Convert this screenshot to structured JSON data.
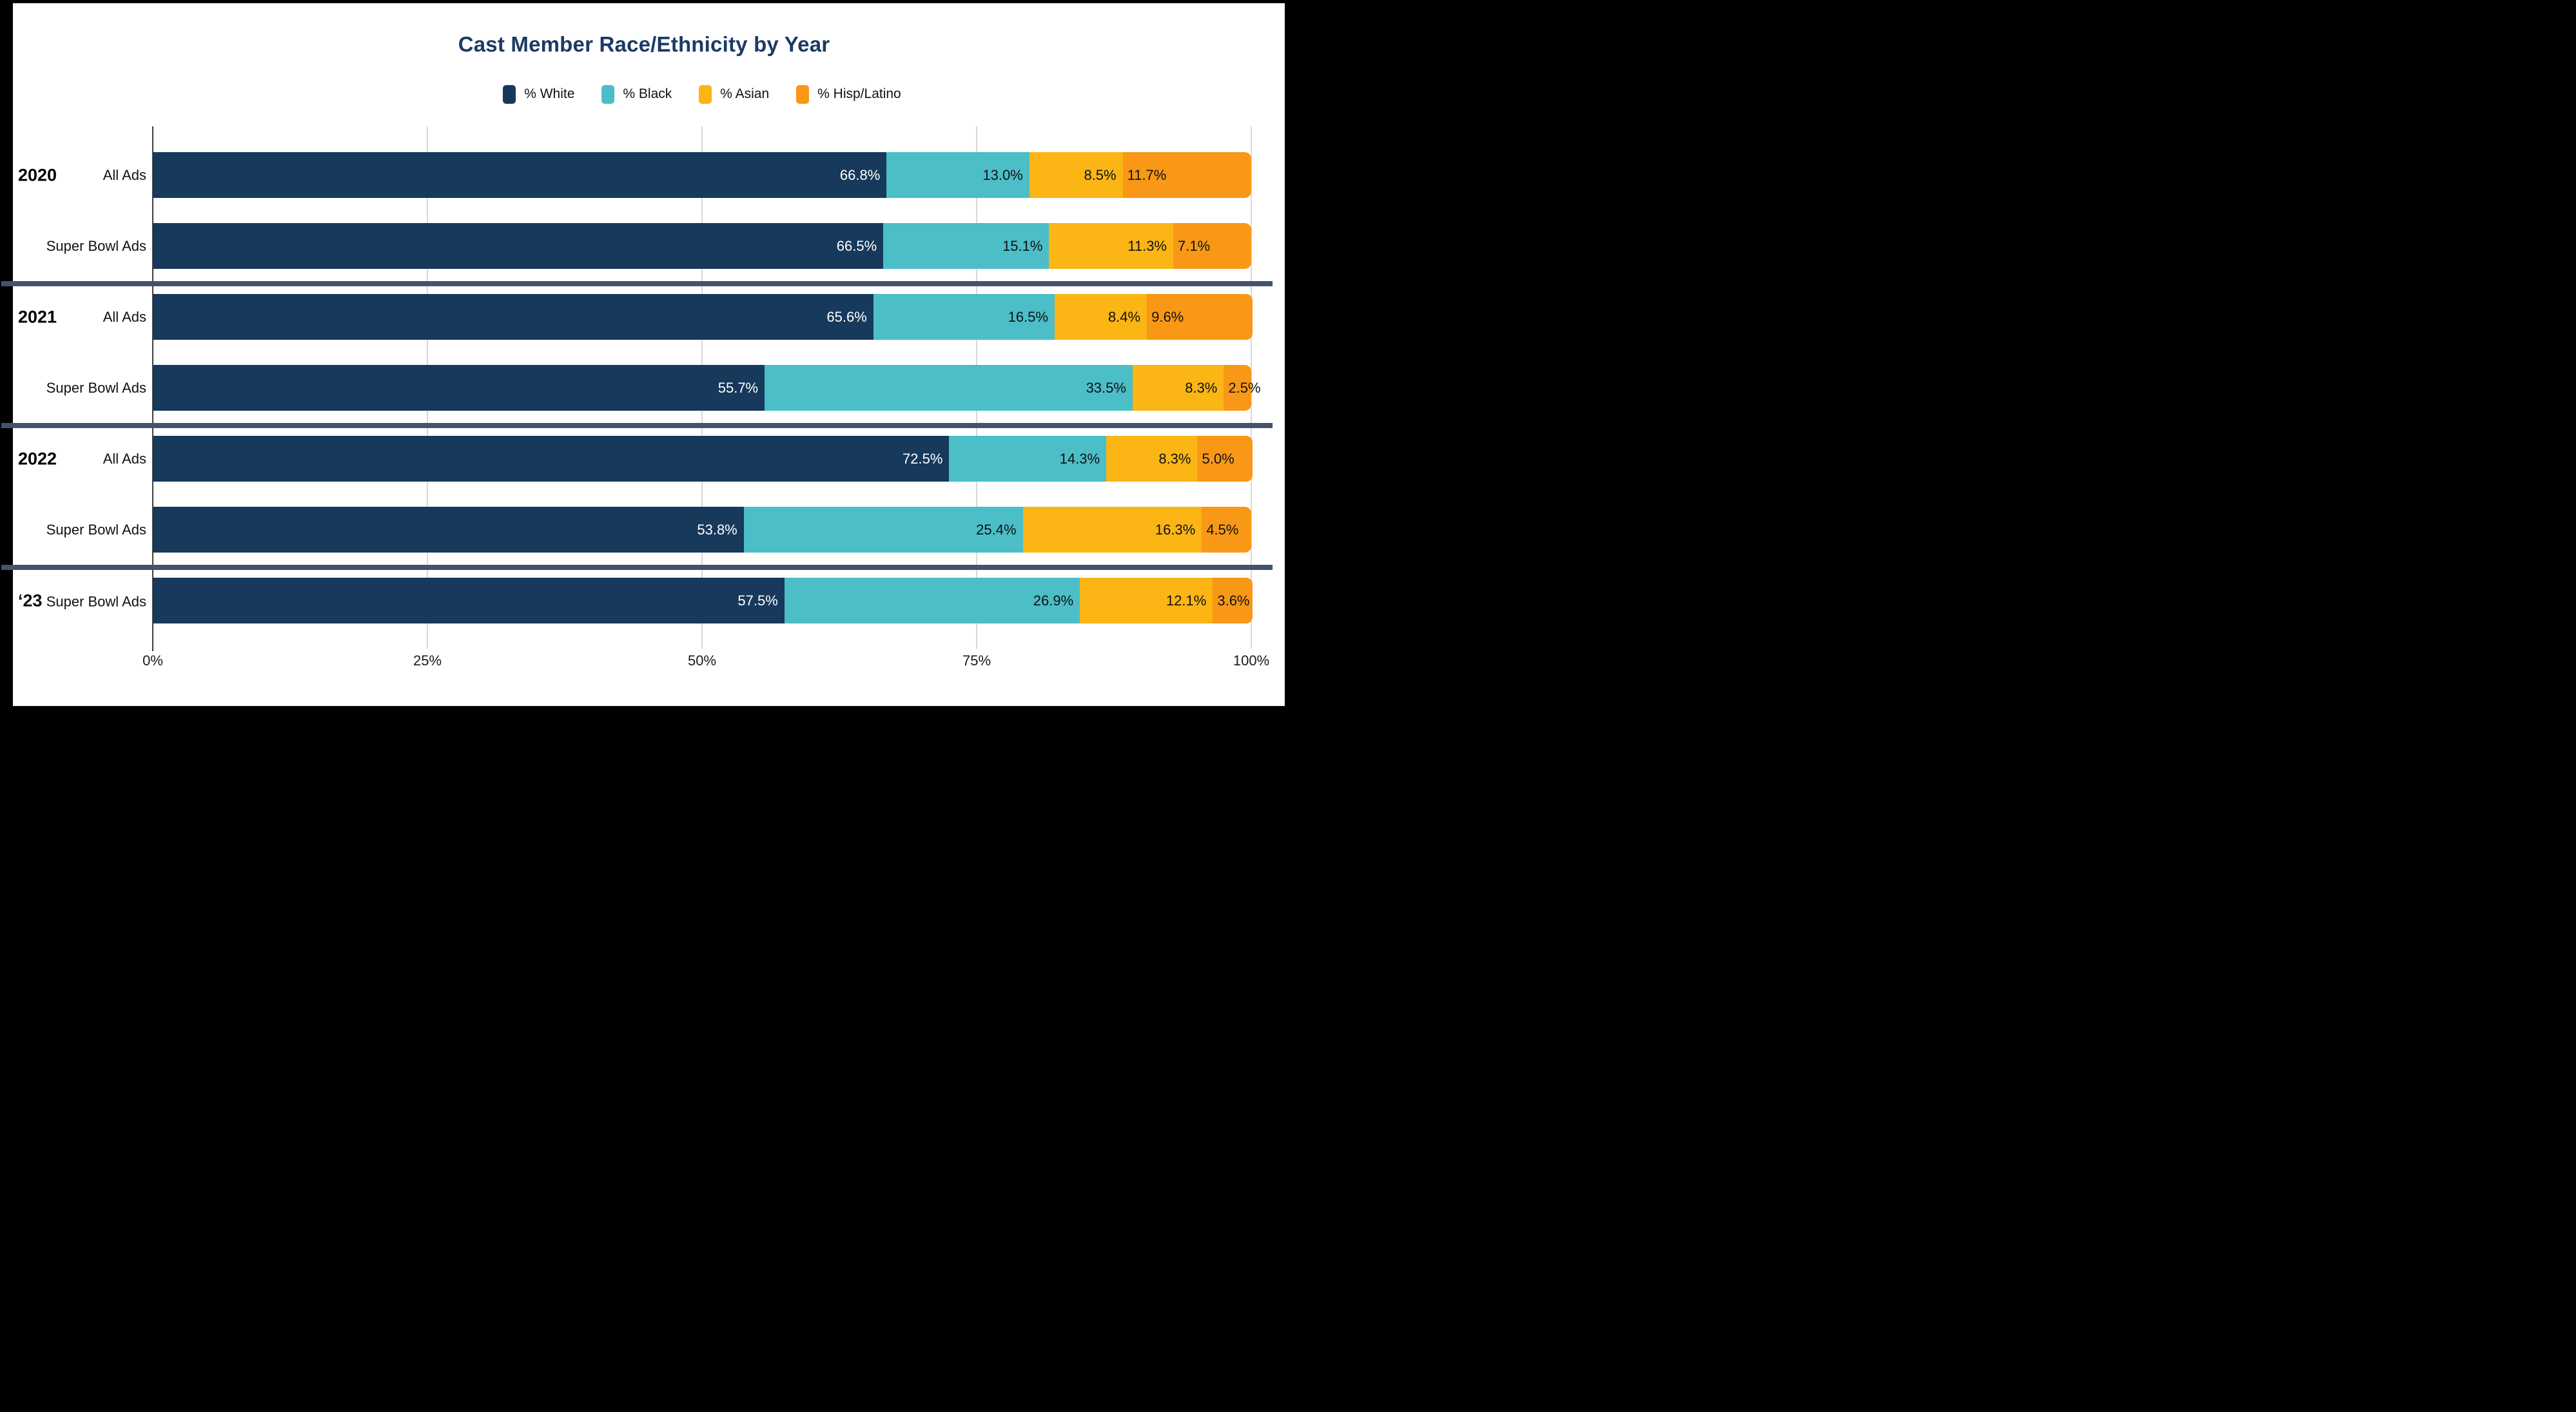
{
  "title": "Cast Member Race/Ethnicity by Year",
  "colors": {
    "white_series": "#16395C",
    "black_series": "#4BBEC8",
    "asian_series": "#FBB515",
    "hisp_series": "#F89816",
    "title_text": "#1C3A63",
    "divider": "#44536A",
    "axis_line": "#3F3F3F",
    "gridline": "#D9D9D9",
    "panel_bg": "#FFFFFF",
    "frame_bg": "#000000"
  },
  "chart_data": {
    "type": "bar",
    "stacked": true,
    "orientation": "horizontal",
    "title": "Cast Member Race/Ethnicity by Year",
    "legend_position": "top",
    "grid": "vertical-only",
    "xlim": [
      0,
      100
    ],
    "x_tick_values": [
      0,
      25,
      50,
      75,
      100
    ],
    "x_tick_labels": [
      "0%",
      "25%",
      "50%",
      "75%",
      "100%"
    ],
    "series_names": [
      "% White",
      "% Black",
      "% Asian",
      "% Hisp/Latino"
    ],
    "series_colors": [
      "#16395C",
      "#4BBEC8",
      "#FBB515",
      "#F89816"
    ],
    "rows": [
      {
        "year": "2020",
        "year_inline": "",
        "label": "All Ads",
        "values": [
          66.8,
          13.0,
          8.5,
          11.7
        ],
        "divider_after": false
      },
      {
        "year": "",
        "year_inline": "",
        "label": "Super Bowl Ads",
        "values": [
          66.5,
          15.1,
          11.3,
          7.1
        ],
        "divider_after": true
      },
      {
        "year": "2021",
        "year_inline": "",
        "label": "All Ads",
        "values": [
          65.6,
          16.5,
          8.4,
          9.6
        ],
        "divider_after": false
      },
      {
        "year": "",
        "year_inline": "",
        "label": "Super Bowl Ads",
        "values": [
          55.7,
          33.5,
          8.3,
          2.5
        ],
        "divider_after": true
      },
      {
        "year": "2022",
        "year_inline": "",
        "label": "All Ads",
        "values": [
          72.5,
          14.3,
          8.3,
          5.0
        ],
        "divider_after": false
      },
      {
        "year": "",
        "year_inline": "",
        "label": "Super Bowl Ads",
        "values": [
          53.8,
          25.4,
          16.3,
          4.5
        ],
        "divider_after": true
      },
      {
        "year": "",
        "year_inline": "‘23",
        "label": "Super Bowl Ads",
        "values": [
          57.5,
          26.9,
          12.1,
          3.6
        ],
        "divider_after": false
      }
    ]
  }
}
